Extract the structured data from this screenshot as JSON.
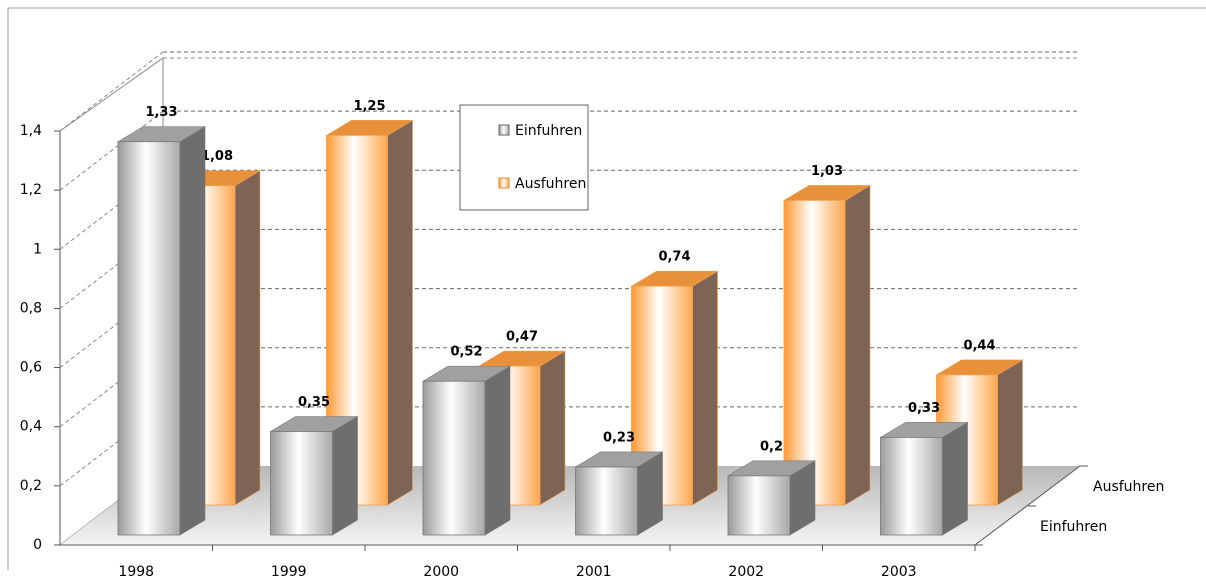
{
  "chart_data": {
    "type": "bar3d",
    "categories": [
      "1998",
      "1999",
      "2000",
      "2001",
      "2002",
      "2003"
    ],
    "series": [
      {
        "name": "Einfuhren",
        "color": "#8c8c8c",
        "values": [
          1.33,
          0.35,
          0.52,
          0.23,
          0.2,
          0.33
        ],
        "value_labels": [
          "1,33",
          "0,35",
          "0,52",
          "0,23",
          "0,2",
          "0,33"
        ]
      },
      {
        "name": "Ausfuhren",
        "color": "#ff9933",
        "values": [
          1.08,
          1.25,
          0.47,
          0.74,
          1.03,
          0.44
        ],
        "value_labels": [
          "1,08",
          "1,25",
          "0,47",
          "0,74",
          "1,03",
          "0,44"
        ]
      }
    ],
    "ylim": [
      0,
      1.4
    ],
    "yticks": [
      0,
      {
        "value": 0.2,
        "label": "0,2"
      },
      {
        "value": 0.4,
        "label": "0,4"
      },
      {
        "value": 0.6,
        "label": "0,6"
      },
      {
        "value": 0.8,
        "label": "0,8"
      },
      1,
      {
        "value": 1.2,
        "label": "1,2"
      },
      {
        "value": 1.4,
        "label": "1,4"
      }
    ],
    "grid": true
  }
}
